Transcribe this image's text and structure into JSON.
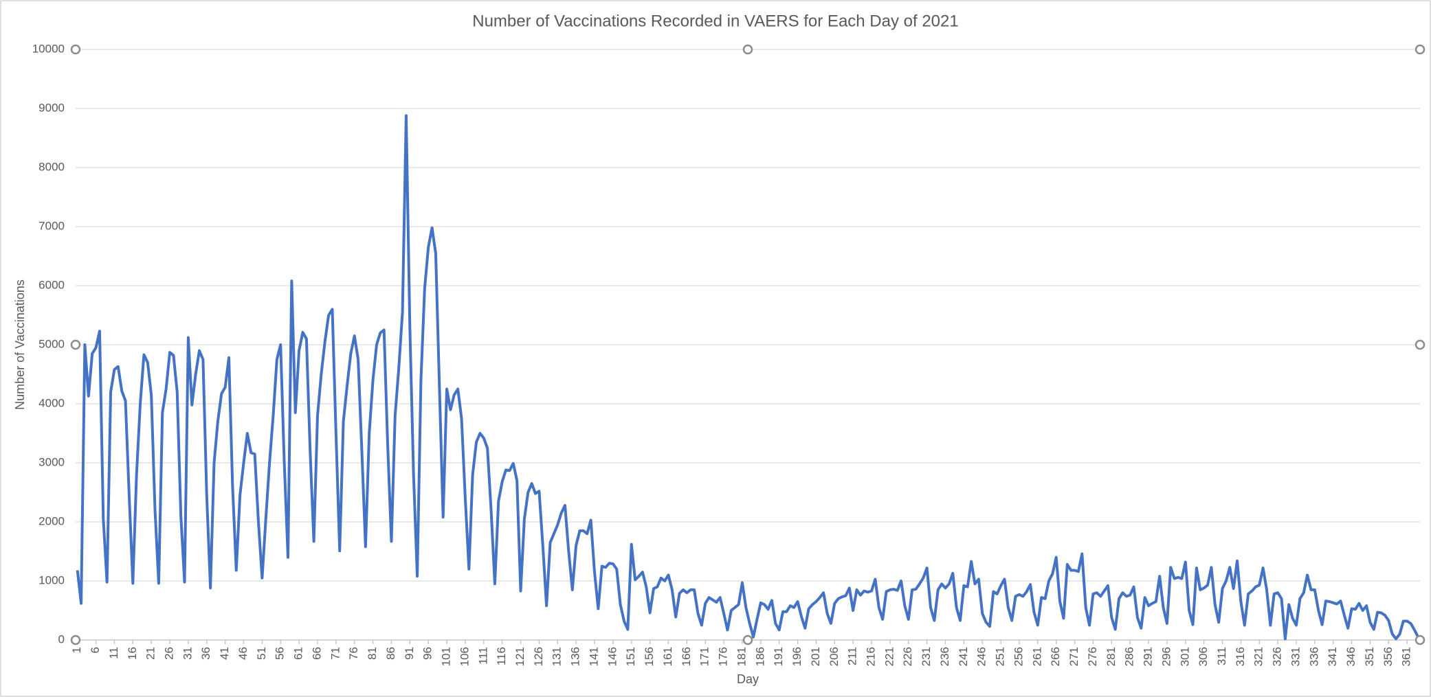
{
  "chart_data": {
    "type": "line",
    "title": "Number of Vaccinations Recorded in VAERS for Each Day of 2021",
    "x_label": "Day",
    "y_label": "Number of Vaccinations",
    "color": "#4472c4",
    "grid": true,
    "xlim": [
      0.5,
      364.5
    ],
    "ylim": [
      0,
      10000
    ],
    "yticks": [
      0,
      1000,
      2000,
      3000,
      4000,
      5000,
      6000,
      7000,
      8000,
      9000,
      10000
    ],
    "xticks": [
      1,
      6,
      11,
      16,
      21,
      26,
      31,
      36,
      41,
      46,
      51,
      56,
      61,
      66,
      71,
      76,
      81,
      86,
      91,
      96,
      101,
      106,
      111,
      116,
      121,
      126,
      131,
      136,
      141,
      146,
      151,
      156,
      161,
      166,
      171,
      176,
      181,
      186,
      191,
      196,
      201,
      206,
      211,
      216,
      221,
      226,
      231,
      236,
      241,
      246,
      251,
      256,
      261,
      266,
      271,
      276,
      281,
      286,
      291,
      296,
      301,
      306,
      311,
      316,
      321,
      326,
      331,
      336,
      341,
      346,
      351,
      356,
      361
    ],
    "x": [
      1,
      2,
      3,
      4,
      5,
      6,
      7,
      8,
      9,
      10,
      11,
      12,
      13,
      14,
      15,
      16,
      17,
      18,
      19,
      20,
      21,
      22,
      23,
      24,
      25,
      26,
      27,
      28,
      29,
      30,
      31,
      32,
      33,
      34,
      35,
      36,
      37,
      38,
      39,
      40,
      41,
      42,
      43,
      44,
      45,
      46,
      47,
      48,
      49,
      50,
      51,
      52,
      53,
      54,
      55,
      56,
      57,
      58,
      59,
      60,
      61,
      62,
      63,
      64,
      65,
      66,
      67,
      68,
      69,
      70,
      71,
      72,
      73,
      74,
      75,
      76,
      77,
      78,
      79,
      80,
      81,
      82,
      83,
      84,
      85,
      86,
      87,
      88,
      89,
      90,
      91,
      92,
      93,
      94,
      95,
      96,
      97,
      98,
      99,
      100,
      101,
      102,
      103,
      104,
      105,
      106,
      107,
      108,
      109,
      110,
      111,
      112,
      113,
      114,
      115,
      116,
      117,
      118,
      119,
      120,
      121,
      122,
      123,
      124,
      125,
      126,
      127,
      128,
      129,
      130,
      131,
      132,
      133,
      134,
      135,
      136,
      137,
      138,
      139,
      140,
      141,
      142,
      143,
      144,
      145,
      146,
      147,
      148,
      149,
      150,
      151,
      152,
      153,
      154,
      155,
      156,
      157,
      158,
      159,
      160,
      161,
      162,
      163,
      164,
      165,
      166,
      167,
      168,
      169,
      170,
      171,
      172,
      173,
      174,
      175,
      176,
      177,
      178,
      179,
      180,
      181,
      182,
      183,
      184,
      185,
      186,
      187,
      188,
      189,
      190,
      191,
      192,
      193,
      194,
      195,
      196,
      197,
      198,
      199,
      200,
      201,
      202,
      203,
      204,
      205,
      206,
      207,
      208,
      209,
      210,
      211,
      212,
      213,
      214,
      215,
      216,
      217,
      218,
      219,
      220,
      221,
      222,
      223,
      224,
      225,
      226,
      227,
      228,
      229,
      230,
      231,
      232,
      233,
      234,
      235,
      236,
      237,
      238,
      239,
      240,
      241,
      242,
      243,
      244,
      245,
      246,
      247,
      248,
      249,
      250,
      251,
      252,
      253,
      254,
      255,
      256,
      257,
      258,
      259,
      260,
      261,
      262,
      263,
      264,
      265,
      266,
      267,
      268,
      269,
      270,
      271,
      272,
      273,
      274,
      275,
      276,
      277,
      278,
      279,
      280,
      281,
      282,
      283,
      284,
      285,
      286,
      287,
      288,
      289,
      290,
      291,
      292,
      293,
      294,
      295,
      296,
      297,
      298,
      299,
      300,
      301,
      302,
      303,
      304,
      305,
      306,
      307,
      308,
      309,
      310,
      311,
      312,
      313,
      314,
      315,
      316,
      317,
      318,
      319,
      320,
      321,
      322,
      323,
      324,
      325,
      326,
      327,
      328,
      329,
      330,
      331,
      332,
      333,
      334,
      335,
      336,
      337,
      338,
      339,
      340,
      341,
      342,
      343,
      344,
      345,
      346,
      347,
      348,
      349,
      350,
      351,
      352,
      353,
      354,
      355,
      356,
      357,
      358,
      359,
      360,
      361,
      362,
      363,
      364
    ],
    "values": [
      1180,
      620,
      5000,
      4130,
      4850,
      4950,
      5230,
      2050,
      980,
      4200,
      4580,
      4630,
      4220,
      4050,
      2450,
      960,
      2800,
      4000,
      4830,
      4700,
      4150,
      2200,
      960,
      3850,
      4250,
      4870,
      4820,
      4200,
      2100,
      980,
      5120,
      3980,
      4500,
      4900,
      4750,
      2450,
      880,
      3000,
      3700,
      4170,
      4280,
      4780,
      2600,
      1180,
      2450,
      3000,
      3500,
      3170,
      3150,
      2000,
      1050,
      2050,
      3000,
      3800,
      4750,
      5000,
      3000,
      1400,
      6080,
      3850,
      4900,
      5210,
      5100,
      3200,
      1670,
      3800,
      4500,
      5050,
      5500,
      5600,
      3500,
      1510,
      3700,
      4300,
      4850,
      5150,
      4750,
      3200,
      1580,
      3500,
      4400,
      5000,
      5200,
      5250,
      3300,
      1670,
      3800,
      4600,
      5550,
      8880,
      5300,
      2800,
      1080,
      4400,
      5950,
      6650,
      6980,
      6550,
      4300,
      2080,
      4250,
      3900,
      4150,
      4250,
      3750,
      2400,
      1200,
      2800,
      3350,
      3500,
      3420,
      3250,
      2200,
      950,
      2350,
      2680,
      2880,
      2870,
      2990,
      2700,
      830,
      2050,
      2500,
      2650,
      2480,
      2520,
      1600,
      580,
      1650,
      1800,
      1950,
      2150,
      2280,
      1500,
      850,
      1600,
      1850,
      1850,
      1800,
      2030,
      1150,
      530,
      1250,
      1230,
      1300,
      1290,
      1200,
      600,
      320,
      180,
      1620,
      1020,
      1080,
      1150,
      900,
      460,
      870,
      900,
      1050,
      1000,
      1100,
      850,
      390,
      790,
      850,
      800,
      850,
      850,
      450,
      250,
      620,
      720,
      680,
      640,
      720,
      450,
      170,
      500,
      550,
      600,
      970,
      550,
      280,
      50,
      350,
      630,
      600,
      520,
      670,
      280,
      170,
      480,
      480,
      580,
      550,
      650,
      400,
      200,
      530,
      600,
      650,
      720,
      800,
      450,
      280,
      620,
      700,
      730,
      750,
      880,
      500,
      850,
      760,
      830,
      810,
      830,
      1030,
      550,
      350,
      820,
      850,
      860,
      840,
      1000,
      580,
      350,
      850,
      860,
      950,
      1050,
      1220,
      550,
      330,
      850,
      950,
      880,
      950,
      1130,
      550,
      330,
      920,
      900,
      1330,
      950,
      1030,
      450,
      300,
      230,
      820,
      780,
      920,
      1030,
      550,
      330,
      740,
      770,
      740,
      820,
      940,
      470,
      250,
      720,
      700,
      1000,
      1120,
      1400,
      650,
      370,
      1280,
      1180,
      1180,
      1160,
      1460,
      550,
      250,
      780,
      800,
      740,
      830,
      920,
      380,
      180,
      700,
      800,
      740,
      760,
      900,
      380,
      200,
      720,
      580,
      620,
      650,
      1080,
      550,
      280,
      1230,
      1040,
      1060,
      1040,
      1320,
      500,
      260,
      1220,
      850,
      880,
      930,
      1230,
      600,
      300,
      870,
      1000,
      1230,
      870,
      1340,
      650,
      250,
      780,
      830,
      900,
      930,
      1220,
      850,
      250,
      780,
      800,
      700,
      20,
      600,
      370,
      250,
      700,
      800,
      1100,
      850,
      850,
      500,
      260,
      660,
      650,
      630,
      610,
      660,
      420,
      200,
      530,
      520,
      620,
      500,
      580,
      300,
      180,
      470,
      460,
      420,
      330,
      100,
      20,
      100,
      320,
      320,
      280,
      170,
      50
    ]
  }
}
